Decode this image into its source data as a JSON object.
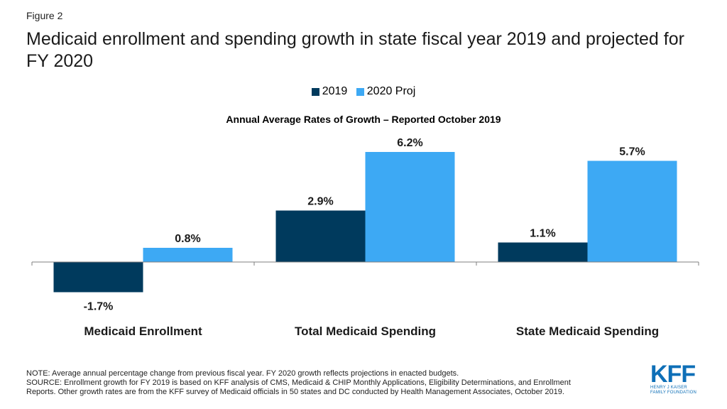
{
  "figure_label": "Figure 2",
  "title": "Medicaid enrollment and spending growth in state fiscal year 2019 and projected for FY 2020",
  "colors": {
    "series_2019": "#003a5d",
    "series_2020": "#3da9f4"
  },
  "chart_data": {
    "type": "bar",
    "title": "Annual Average Rates of Growth – Reported October 2019",
    "categories": [
      "Medicaid Enrollment",
      "Total Medicaid Spending",
      "State Medicaid Spending"
    ],
    "series": [
      {
        "name": "2019",
        "values": [
          -1.7,
          2.9,
          1.1
        ],
        "labels": [
          "-1.7%",
          "2.9%",
          "1.1%"
        ]
      },
      {
        "name": "2020 Proj",
        "values": [
          0.8,
          6.2,
          5.7
        ],
        "labels": [
          "0.8%",
          "6.2%",
          "5.7%"
        ]
      }
    ],
    "legend_position": "top-center",
    "grid": false
  },
  "notes": [
    "NOTE: Average annual percentage change from previous fiscal year. FY 2020 growth reflects projections in enacted budgets.",
    "SOURCE: Enrollment growth for FY 2019 is based on KFF analysis of CMS, Medicaid & CHIP Monthly Applications, Eligibility Determinations, and Enrollment",
    "Reports. Other growth rates are from the KFF survey of Medicaid officials in 50 states and DC conducted by Health Management Associates, October 2019."
  ],
  "logo": {
    "mark": "KFF",
    "line1": "HENRY J KAISER",
    "line2": "FAMILY FOUNDATION"
  }
}
